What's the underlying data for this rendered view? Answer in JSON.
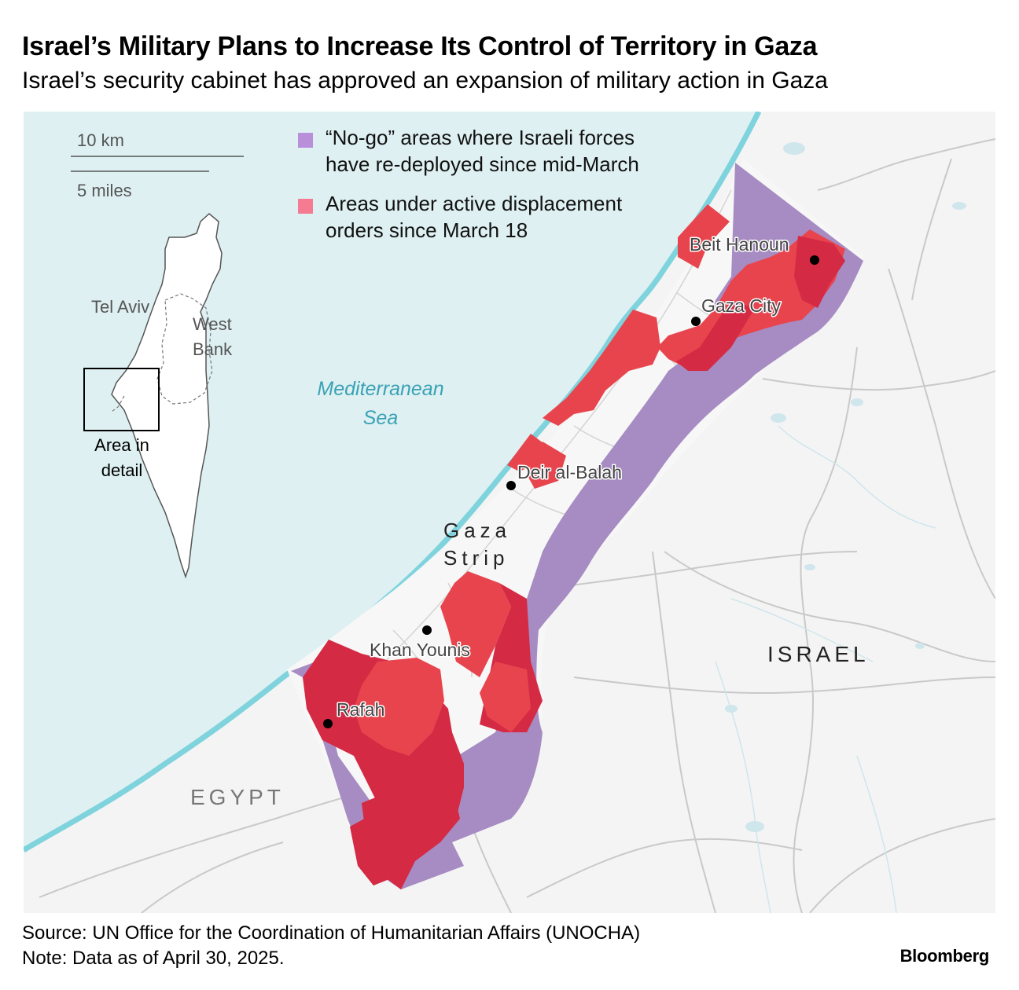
{
  "header": {
    "title": "Israel’s Military Plans to Increase Its Control of Territory in Gaza",
    "subtitle": "Israel’s security cabinet has approved an expansion of military action in Gaza"
  },
  "legend": {
    "nogo_line1": "“No-go” areas where Israeli forces",
    "nogo_line2": "have re-deployed since mid-March",
    "displacement_line1": "Areas under active displacement",
    "displacement_line2": "orders since March 18"
  },
  "scale": {
    "km_label": "10 km",
    "miles_label": "5 miles"
  },
  "inset": {
    "tel_aviv": "Tel Aviv",
    "west_bank_line1": "West",
    "west_bank_line2": "Bank",
    "detail_line1": "Area in",
    "detail_line2": "detail"
  },
  "labels": {
    "sea_line1": "Mediterranean",
    "sea_line2": "Sea",
    "gaza_strip_line1": "Gaza",
    "gaza_strip_line2": "Strip",
    "israel": "ISRAEL",
    "egypt": "EGYPT"
  },
  "cities": {
    "beit_hanoun": "Beit Hanoun",
    "gaza_city": "Gaza City",
    "deir_al_balah": "Deir al-Balah",
    "khan_younis": "Khan Younis",
    "rafah": "Rafah"
  },
  "footer": {
    "source": "Source: UN Office for the Coordination of Humanitarian Affairs (UNOCHA)",
    "note": "Note: Data as of April 30, 2025.",
    "logo": "Bloomberg"
  },
  "colors": {
    "sea": "#def0f2",
    "coast": "#7fd3dd",
    "land": "#f4f4f4",
    "nogo": "#a68cc2",
    "displacement": "#e8444d",
    "displacement_dark": "#d42a44",
    "legend_nogo": "#b98fda",
    "legend_displacement": "#f47b91"
  }
}
